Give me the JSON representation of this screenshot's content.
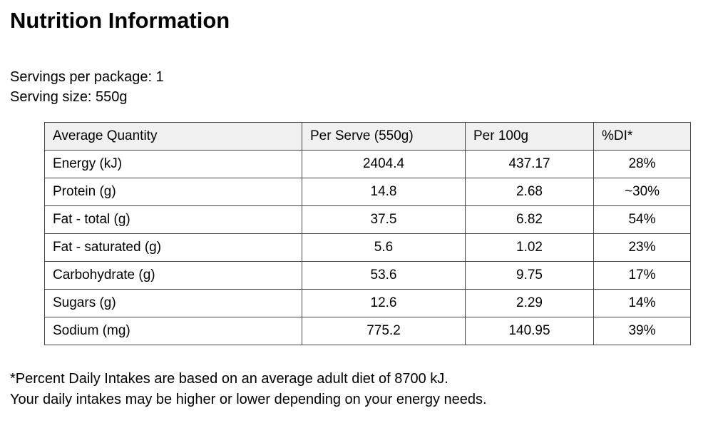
{
  "page": {
    "title": "Nutrition Information",
    "servings_per_package": "Servings per package: 1",
    "serving_size": "Serving size: 550g"
  },
  "table": {
    "headers": {
      "average_quantity": "Average Quantity",
      "per_serve": "Per Serve (550g)",
      "per_100g": "Per 100g",
      "daily_intake": "%DI*"
    },
    "rows": [
      {
        "name": "Energy (kJ)",
        "per_serve": "2404.4",
        "per_100g": "437.17",
        "daily_intake": "28%"
      },
      {
        "name": "Protein (g)",
        "per_serve": "14.8",
        "per_100g": "2.68",
        "daily_intake": "~30%"
      },
      {
        "name": "Fat - total (g)",
        "per_serve": "37.5",
        "per_100g": "6.82",
        "daily_intake": "54%"
      },
      {
        "name": "Fat - saturated (g)",
        "per_serve": "5.6",
        "per_100g": "1.02",
        "daily_intake": "23%"
      },
      {
        "name": "Carbohydrate (g)",
        "per_serve": "53.6",
        "per_100g": "9.75",
        "daily_intake": "17%"
      },
      {
        "name": "Sugars (g)",
        "per_serve": "12.6",
        "per_100g": "2.29",
        "daily_intake": "14%"
      },
      {
        "name": "Sodium (mg)",
        "per_serve": "775.2",
        "per_100g": "140.95",
        "daily_intake": "39%"
      }
    ]
  },
  "footnote": {
    "line1": "*Percent Daily Intakes are based on an average adult diet of 8700 kJ.",
    "line2": "Your daily intakes may be higher or lower depending on your energy needs."
  },
  "colors": {
    "header_background": "#f0f0f0",
    "table_border": "#444444",
    "text": "#000000",
    "page_background": "#ffffff"
  }
}
